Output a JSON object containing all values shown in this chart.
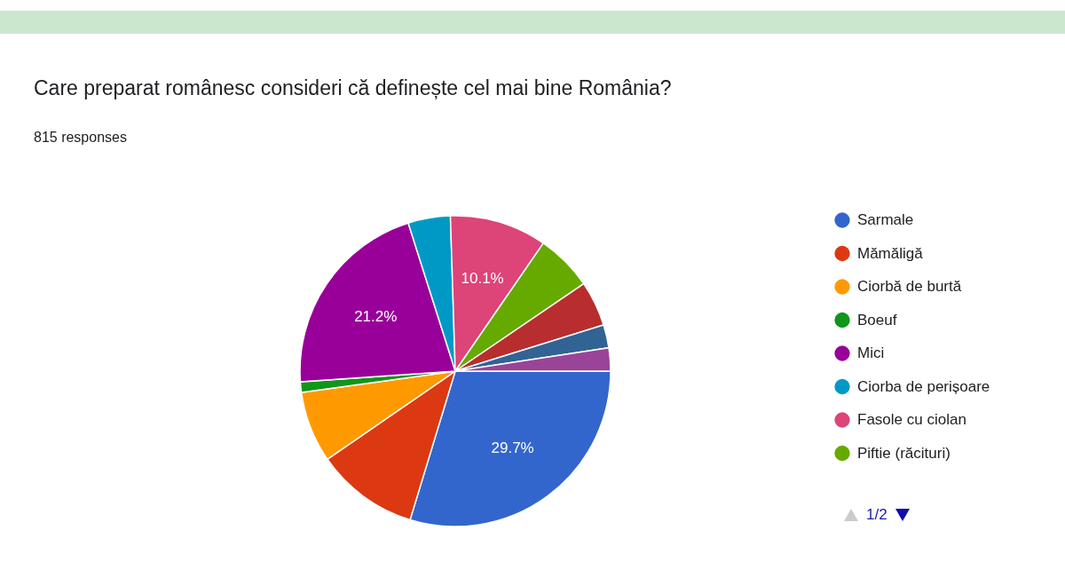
{
  "chart_data": {
    "type": "pie",
    "title": "Care preparat românesc consideri că definește cel mai bine România?",
    "subtitle": "815 responses",
    "categories": [
      "Sarmale",
      "Mămăligă",
      "Ciorbă de burtă",
      "Boeuf",
      "Mici",
      "Ciorba de perișoare",
      "Fasole cu ciolan",
      "Piftie (răcituri)",
      null,
      null,
      null
    ],
    "values": [
      29.7,
      10.7,
      7.4,
      1.1,
      21.2,
      4.4,
      10.1,
      5.9,
      4.7,
      2.4,
      2.4
    ],
    "value_labels": [
      "29.7%",
      null,
      null,
      null,
      "21.2%",
      null,
      "10.1%",
      null,
      null,
      null,
      null
    ],
    "colors": [
      "#3366cc",
      "#dc3912",
      "#ff9900",
      "#109618",
      "#990099",
      "#0099c6",
      "#dd4477",
      "#66aa00",
      "#b82e2e",
      "#316395",
      "#994499"
    ],
    "legend": "right",
    "annotations": [
      "1/2"
    ]
  }
}
